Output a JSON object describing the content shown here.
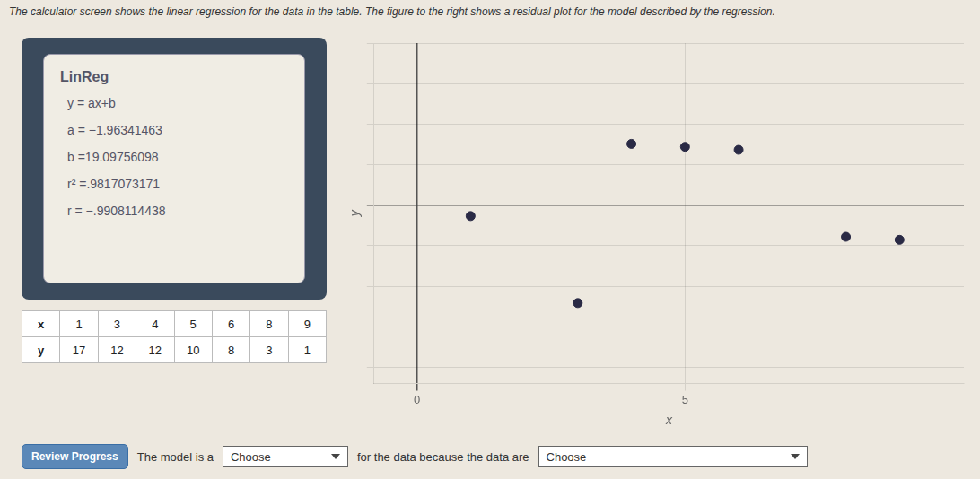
{
  "chart_data": {
    "type": "scatter",
    "subtitle": "The calculator screen shows the linear regression for the data in the table. The figure to the right shows a residual plot for the model described by the regression.",
    "xlabel": "x",
    "ylabel": "y",
    "x": [
      1,
      3,
      4,
      5,
      6,
      8,
      9
    ],
    "values": [
      -0.134,
      -1.207,
      0.756,
      0.72,
      0.683,
      -0.39,
      -0.427
    ],
    "color": "#2a2a45",
    "marker": "circle",
    "xlim": [
      -0.8,
      10.2
    ],
    "ylim": [
      -2.2,
      2.0
    ],
    "xticks": [
      0,
      5
    ],
    "yticks": [
      -2,
      -1.5,
      -1,
      -0.5,
      0,
      0.5,
      1,
      1.5,
      2
    ],
    "tick_labels": "x",
    "grid": true,
    "annotations": {
      "calculator": [
        "LinReg",
        "y = ax+b",
        "a = −1.96341463",
        "b =19.09756098",
        "r² =.9817073171",
        "r = −.9908114438"
      ],
      "sentence": [
        "The model is a",
        "Choose",
        "for the data because the data are",
        "Choose"
      ],
      "button": "Review Progress"
    },
    "table": [
      {
        "label": "x",
        "values": [
          1,
          3,
          4,
          5,
          6,
          8,
          9
        ]
      },
      {
        "label": "y",
        "values": [
          17,
          12,
          12,
          10,
          8,
          3,
          1
        ]
      }
    ]
  }
}
